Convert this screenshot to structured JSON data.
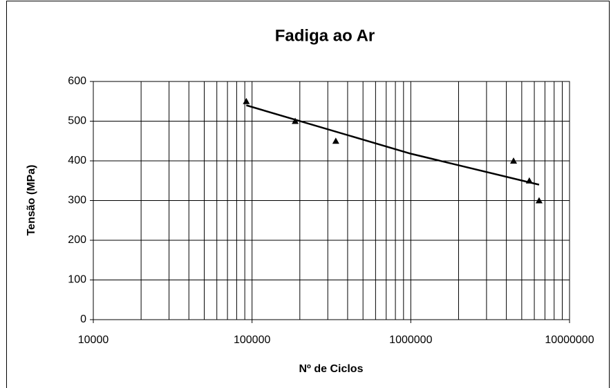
{
  "chart_data": {
    "type": "scatter",
    "title": "Fadiga ao Ar",
    "x_label": "Nº de Ciclos",
    "y_label": "Tensão (MPa)",
    "x_scale": "log",
    "grid": true,
    "xlim": [
      10000,
      10000000
    ],
    "xticks": [
      10000,
      100000,
      1000000,
      10000000
    ],
    "ylim": [
      0,
      600
    ],
    "yticks": [
      0,
      100,
      200,
      300,
      400,
      500,
      600
    ],
    "series": [
      {
        "color": "#000000",
        "marker": "triangle",
        "x": [
          92000,
          187000,
          337000,
          4440000,
          5580000,
          6430000
        ],
        "values": [
          550,
          500,
          450,
          400,
          350,
          300
        ]
      }
    ],
    "trendline": {
      "color": "#000000",
      "x": [
        92000,
        1000000,
        6430000
      ],
      "values": [
        540,
        418,
        340
      ]
    }
  }
}
